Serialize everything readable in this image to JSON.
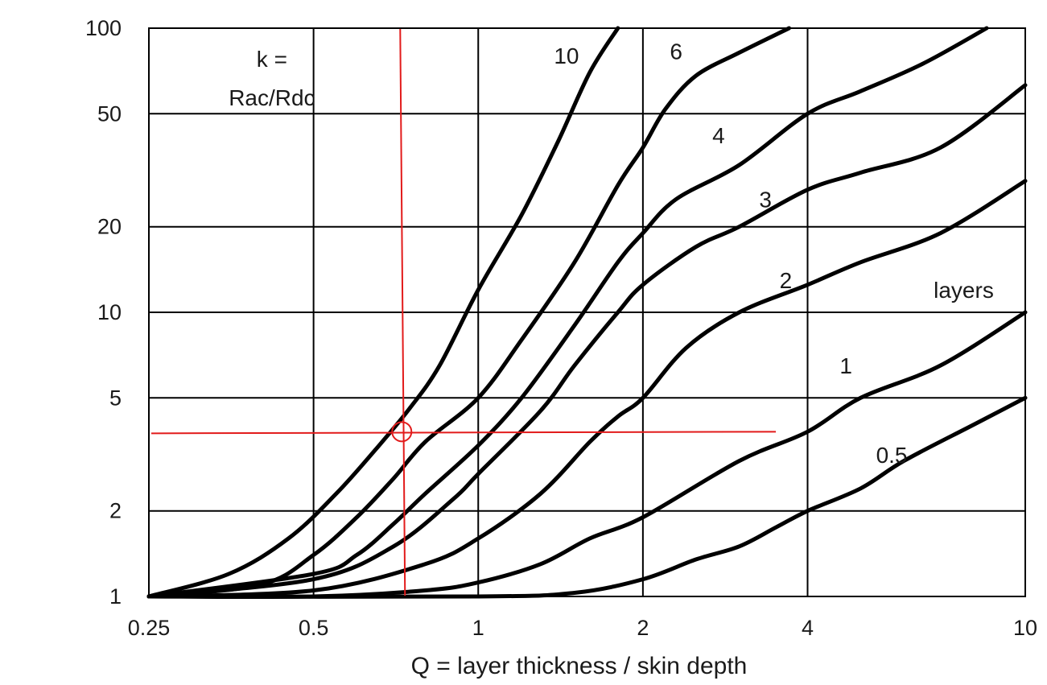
{
  "chart_data": {
    "type": "line",
    "title": "",
    "xlabel": "Q = layer thickness / skin depth",
    "ylabel": "",
    "xscale": "log",
    "yscale": "log",
    "xlim": [
      0.25,
      10
    ],
    "ylim": [
      1,
      100
    ],
    "xticks": [
      0.25,
      0.5,
      1,
      2,
      4,
      10
    ],
    "xtick_labels": [
      "0.25",
      "0.5",
      "1",
      "2",
      "4",
      "10"
    ],
    "yticks": [
      1,
      2,
      5,
      10,
      20,
      50,
      100
    ],
    "ytick_labels": [
      "1",
      "2",
      "5",
      "10",
      "20",
      "50",
      "100"
    ],
    "grid": true,
    "annotations": [
      {
        "id": "k",
        "text": "k =",
        "x": 0.32,
        "y": 78
      },
      {
        "id": "ratio",
        "text": "Rac/Rdc",
        "x": 0.32,
        "y": 57
      },
      {
        "id": "layers",
        "text": "layers",
        "x": 6.8,
        "y": 12
      }
    ],
    "marker": {
      "x": 0.72,
      "y": 3.8,
      "color": "#e21b1b"
    },
    "series": [
      {
        "name": "10",
        "label_at": [
          1.45,
          80
        ],
        "points": [
          [
            0.25,
            1.0
          ],
          [
            0.35,
            1.2
          ],
          [
            0.45,
            1.6
          ],
          [
            0.55,
            2.3
          ],
          [
            0.65,
            3.3
          ],
          [
            0.75,
            4.6
          ],
          [
            0.85,
            6.5
          ],
          [
            1.0,
            12
          ],
          [
            1.2,
            22
          ],
          [
            1.4,
            40
          ],
          [
            1.6,
            70
          ],
          [
            1.8,
            100
          ]
        ]
      },
      {
        "name": "6",
        "label_at": [
          2.3,
          83
        ],
        "points": [
          [
            0.25,
            1.0
          ],
          [
            0.4,
            1.1
          ],
          [
            0.5,
            1.4
          ],
          [
            0.6,
            1.9
          ],
          [
            0.7,
            2.6
          ],
          [
            0.8,
            3.5
          ],
          [
            1.0,
            5.0
          ],
          [
            1.2,
            8.0
          ],
          [
            1.5,
            15
          ],
          [
            1.8,
            28
          ],
          [
            2.0,
            38
          ],
          [
            2.2,
            52
          ],
          [
            2.5,
            68
          ],
          [
            3.0,
            82
          ],
          [
            3.7,
            100
          ]
        ]
      },
      {
        "name": "4",
        "label_at": [
          2.75,
          42
        ],
        "points": [
          [
            0.25,
            1.0
          ],
          [
            0.5,
            1.2
          ],
          [
            0.6,
            1.4
          ],
          [
            0.7,
            1.8
          ],
          [
            0.8,
            2.3
          ],
          [
            1.0,
            3.4
          ],
          [
            1.2,
            5.0
          ],
          [
            1.5,
            9.0
          ],
          [
            1.8,
            15
          ],
          [
            2.0,
            19
          ],
          [
            2.3,
            25
          ],
          [
            3.0,
            33
          ],
          [
            4.0,
            50
          ],
          [
            5.0,
            60
          ],
          [
            6.5,
            75
          ],
          [
            8.5,
            100
          ]
        ]
      },
      {
        "name": "3",
        "label_at": [
          3.35,
          25
        ],
        "points": [
          [
            0.25,
            1.0
          ],
          [
            0.5,
            1.15
          ],
          [
            0.7,
            1.5
          ],
          [
            0.9,
            2.2
          ],
          [
            1.0,
            2.7
          ],
          [
            1.3,
            4.5
          ],
          [
            1.5,
            6.5
          ],
          [
            1.8,
            10
          ],
          [
            2.0,
            12.5
          ],
          [
            2.5,
            17
          ],
          [
            3.0,
            20
          ],
          [
            4.0,
            27
          ],
          [
            5.0,
            31
          ],
          [
            7.0,
            38
          ],
          [
            10.0,
            63
          ]
        ]
      },
      {
        "name": "2",
        "label_at": [
          3.65,
          13
        ],
        "points": [
          [
            0.25,
            1.0
          ],
          [
            0.5,
            1.05
          ],
          [
            0.8,
            1.3
          ],
          [
            1.0,
            1.6
          ],
          [
            1.3,
            2.3
          ],
          [
            1.6,
            3.5
          ],
          [
            1.8,
            4.3
          ],
          [
            2.0,
            5.0
          ],
          [
            2.4,
            7.5
          ],
          [
            3.0,
            10
          ],
          [
            4.0,
            12.5
          ],
          [
            5.0,
            15
          ],
          [
            7.0,
            19
          ],
          [
            10.0,
            29
          ]
        ]
      },
      {
        "name": "1",
        "label_at": [
          4.7,
          6.5
        ],
        "points": [
          [
            0.25,
            1.0
          ],
          [
            0.5,
            1.0
          ],
          [
            0.8,
            1.05
          ],
          [
            1.0,
            1.12
          ],
          [
            1.3,
            1.3
          ],
          [
            1.6,
            1.6
          ],
          [
            2.0,
            1.9
          ],
          [
            3.0,
            3.0
          ],
          [
            4.0,
            3.8
          ],
          [
            5.0,
            5.0
          ],
          [
            7.0,
            6.5
          ],
          [
            10.0,
            10
          ]
        ]
      },
      {
        "name": "0.5",
        "label_at": [
          5.7,
          3.15
        ],
        "points": [
          [
            0.25,
            1.0
          ],
          [
            1.0,
            1.0
          ],
          [
            1.5,
            1.03
          ],
          [
            2.0,
            1.15
          ],
          [
            2.5,
            1.35
          ],
          [
            3.0,
            1.5
          ],
          [
            3.5,
            1.75
          ],
          [
            4.0,
            2.0
          ],
          [
            5.0,
            2.4
          ],
          [
            6.0,
            3.0
          ],
          [
            8.0,
            4.0
          ],
          [
            10.0,
            5.0
          ]
        ]
      }
    ]
  }
}
